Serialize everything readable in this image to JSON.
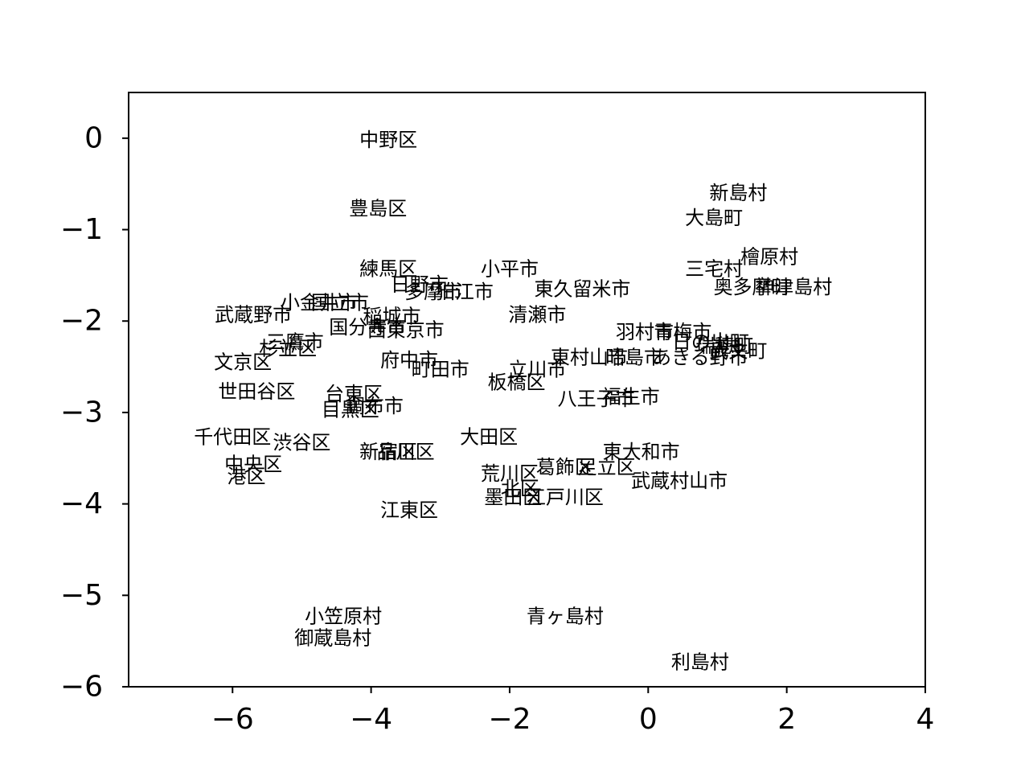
{
  "chart_data": {
    "type": "scatter",
    "title": "",
    "xlabel": "",
    "ylabel": "",
    "xlim": [
      -7.5,
      4
    ],
    "ylim": [
      -6,
      0.5
    ],
    "xticks": [
      -6,
      -4,
      -2,
      0,
      2,
      4
    ],
    "yticks": [
      0,
      -1,
      -2,
      -3,
      -4,
      -5,
      -6
    ],
    "xtick_labels": [
      "−6",
      "−4",
      "−2",
      "0",
      "2",
      "4"
    ],
    "ytick_labels": [
      "0",
      "−1",
      "−2",
      "−3",
      "−4",
      "−5",
      "−6"
    ],
    "grid": false,
    "points": [
      {
        "label": "中野区",
        "x": -3.75,
        "y": -0.02
      },
      {
        "label": "豊島区",
        "x": -3.9,
        "y": -0.77
      },
      {
        "label": "新島村",
        "x": 1.3,
        "y": -0.6
      },
      {
        "label": "大島町",
        "x": 0.95,
        "y": -0.87
      },
      {
        "label": "檜原村",
        "x": 1.75,
        "y": -1.3
      },
      {
        "label": "三宅村",
        "x": 0.95,
        "y": -1.43
      },
      {
        "label": "奥多摩町",
        "x": 1.5,
        "y": -1.63
      },
      {
        "label": "神津島村",
        "x": 2.1,
        "y": -1.63
      },
      {
        "label": "練馬区",
        "x": -3.75,
        "y": -1.43
      },
      {
        "label": "小平市",
        "x": -2.0,
        "y": -1.43
      },
      {
        "label": "日野市",
        "x": -3.3,
        "y": -1.6
      },
      {
        "label": "多摩市",
        "x": -3.1,
        "y": -1.68
      },
      {
        "label": "狛江市",
        "x": -2.65,
        "y": -1.68
      },
      {
        "label": "東久留米市",
        "x": -0.95,
        "y": -1.65
      },
      {
        "label": "小金井市",
        "x": -4.75,
        "y": -1.8
      },
      {
        "label": "国立市",
        "x": -4.45,
        "y": -1.8
      },
      {
        "label": "武蔵野市",
        "x": -5.7,
        "y": -1.93
      },
      {
        "label": "清瀬市",
        "x": -1.6,
        "y": -1.93
      },
      {
        "label": "稲城市",
        "x": -3.7,
        "y": -1.95
      },
      {
        "label": "国分寺市",
        "x": -4.05,
        "y": -2.07
      },
      {
        "label": "西東京市",
        "x": -3.5,
        "y": -2.1
      },
      {
        "label": "羽村市",
        "x": -0.05,
        "y": -2.12
      },
      {
        "label": "青梅市",
        "x": 0.5,
        "y": -2.12
      },
      {
        "label": "三鷹市",
        "x": -5.1,
        "y": -2.23
      },
      {
        "label": "日の出町",
        "x": 0.9,
        "y": -2.23
      },
      {
        "label": "杉並区",
        "x": -5.2,
        "y": -2.3
      },
      {
        "label": "瑞穂町",
        "x": 1.1,
        "y": -2.27
      },
      {
        "label": "東村山市",
        "x": -0.85,
        "y": -2.4
      },
      {
        "label": "昭島市",
        "x": -0.2,
        "y": -2.4
      },
      {
        "label": "あきる野市",
        "x": 0.75,
        "y": -2.4
      },
      {
        "label": "武文町",
        "x": 1.3,
        "y": -2.33
      },
      {
        "label": "文京区",
        "x": -5.85,
        "y": -2.45
      },
      {
        "label": "府中市",
        "x": -3.45,
        "y": -2.43
      },
      {
        "label": "町田市",
        "x": -3.0,
        "y": -2.53
      },
      {
        "label": "立川市",
        "x": -1.6,
        "y": -2.53
      },
      {
        "label": "板橋区",
        "x": -1.9,
        "y": -2.67
      },
      {
        "label": "世田谷区",
        "x": -5.65,
        "y": -2.77
      },
      {
        "label": "台東区",
        "x": -4.25,
        "y": -2.8
      },
      {
        "label": "八王子市",
        "x": -0.75,
        "y": -2.85
      },
      {
        "label": "福生市",
        "x": -0.25,
        "y": -2.83
      },
      {
        "label": "目黒区",
        "x": -4.3,
        "y": -2.97
      },
      {
        "label": "調布市",
        "x": -3.95,
        "y": -2.93
      },
      {
        "label": "千代田区",
        "x": -6.0,
        "y": -3.27
      },
      {
        "label": "大田区",
        "x": -2.3,
        "y": -3.27
      },
      {
        "label": "渋谷区",
        "x": -5.0,
        "y": -3.33
      },
      {
        "label": "新宿区",
        "x": -3.75,
        "y": -3.43
      },
      {
        "label": "品川区",
        "x": -3.5,
        "y": -3.43
      },
      {
        "label": "東大和市",
        "x": -0.1,
        "y": -3.43
      },
      {
        "label": "中央区",
        "x": -5.7,
        "y": -3.57
      },
      {
        "label": "葛飾区",
        "x": -1.2,
        "y": -3.6
      },
      {
        "label": "足立区",
        "x": -0.6,
        "y": -3.6
      },
      {
        "label": "荒川区",
        "x": -2.0,
        "y": -3.67
      },
      {
        "label": "港区",
        "x": -5.8,
        "y": -3.7
      },
      {
        "label": "武蔵村山市",
        "x": 0.45,
        "y": -3.75
      },
      {
        "label": "北区",
        "x": -1.85,
        "y": -3.83
      },
      {
        "label": "墨田区",
        "x": -1.95,
        "y": -3.93
      },
      {
        "label": "江戸川区",
        "x": -1.2,
        "y": -3.93
      },
      {
        "label": "江東区",
        "x": -3.45,
        "y": -4.07
      },
      {
        "label": "小笠原村",
        "x": -4.4,
        "y": -5.23
      },
      {
        "label": "青ヶ島村",
        "x": -1.2,
        "y": -5.23
      },
      {
        "label": "御蔵島村",
        "x": -4.55,
        "y": -5.47
      },
      {
        "label": "利島村",
        "x": 0.75,
        "y": -5.73
      }
    ]
  }
}
